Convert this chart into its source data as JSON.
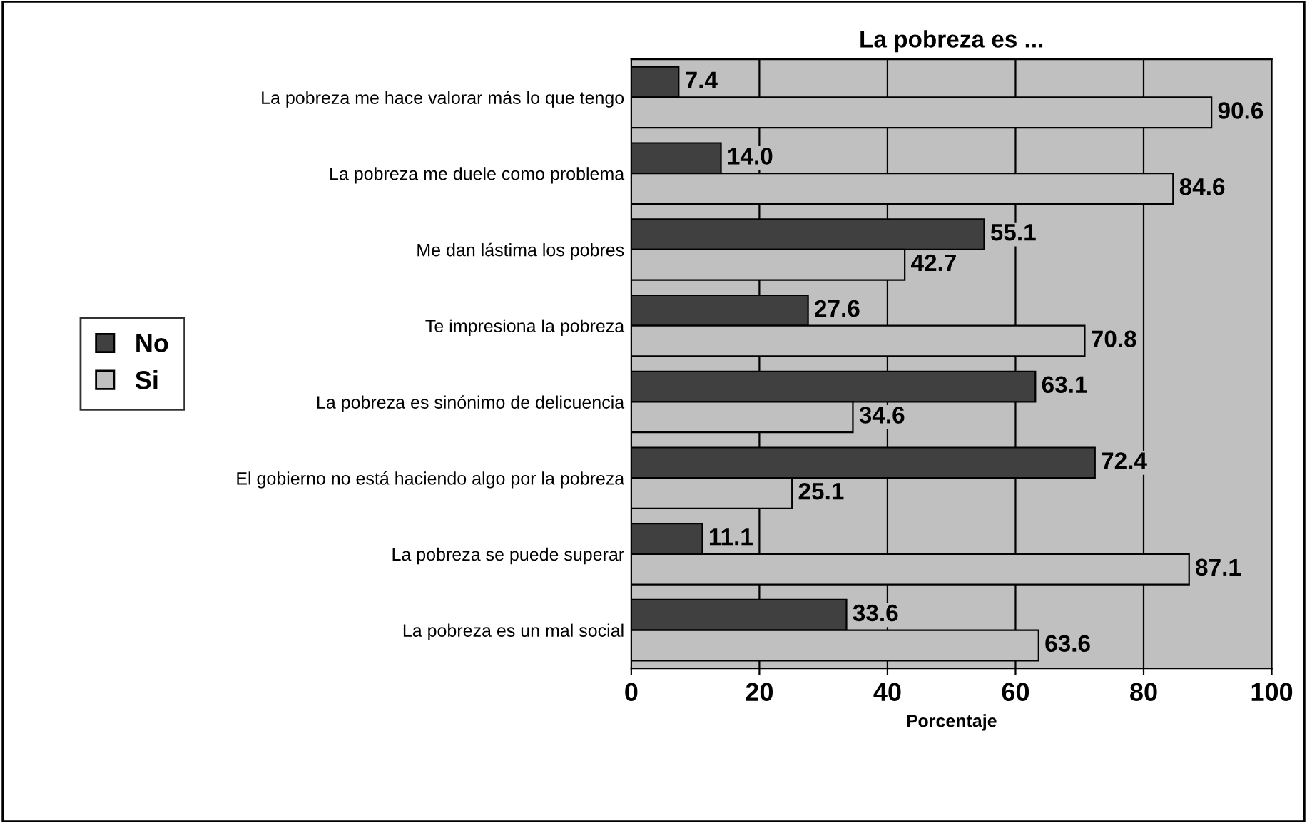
{
  "chart_data": {
    "type": "bar",
    "orientation": "horizontal",
    "title": "La pobreza es ...",
    "xlabel": "Porcentaje",
    "categories": [
      "La pobreza me hace valorar más lo que tengo",
      "La pobreza me duele como problema",
      "Me dan lástima los pobres",
      "Te impresiona la pobreza",
      "La pobreza es sinónimo de delicuencia",
      "El gobierno no está haciendo algo por la pobreza",
      "La pobreza se puede superar",
      "La pobreza es un mal social"
    ],
    "series": [
      {
        "name": "No",
        "color": "#404040",
        "values": [
          7.4,
          14.0,
          55.1,
          27.6,
          63.1,
          72.4,
          11.1,
          33.6
        ],
        "value_labels": [
          "7.4",
          "14.0",
          "55.1",
          "27.6",
          "63.1",
          "72.4",
          "11.1",
          "33.6"
        ]
      },
      {
        "name": "Si",
        "color": "#c0c0c0",
        "values": [
          90.6,
          84.6,
          42.7,
          70.8,
          34.6,
          25.1,
          87.1,
          63.6
        ],
        "value_labels": [
          "90.6",
          "84.6",
          "42.7",
          "70.8",
          "34.6",
          "25.1",
          "87.1",
          "63.6"
        ]
      }
    ],
    "xlim": [
      0,
      100
    ],
    "xticks": [
      0,
      20,
      40,
      60,
      80,
      100
    ],
    "grid": "x",
    "legend": "left"
  }
}
